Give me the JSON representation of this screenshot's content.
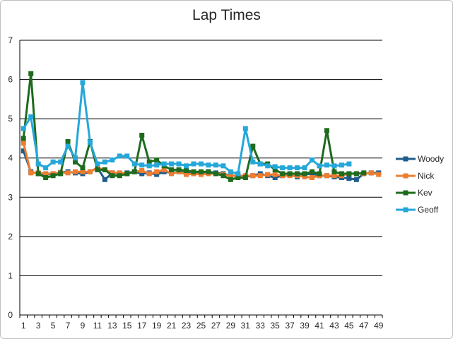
{
  "chart_data": {
    "type": "line",
    "title": "Lap Times",
    "xlabel": "",
    "ylabel": "",
    "ylim": [
      0,
      7
    ],
    "yticks": [
      0,
      1,
      2,
      3,
      4,
      5,
      6,
      7
    ],
    "xticks": [
      1,
      3,
      5,
      7,
      9,
      11,
      13,
      15,
      17,
      19,
      21,
      23,
      25,
      27,
      29,
      31,
      33,
      35,
      37,
      39,
      41,
      43,
      45,
      47,
      49
    ],
    "xlim": [
      1,
      49
    ],
    "grid": true,
    "legend_position": "right",
    "series": [
      {
        "name": "Woody",
        "color": "#1f5c8b",
        "values": [
          4.18,
          3.65,
          3.6,
          3.58,
          3.6,
          3.63,
          3.65,
          3.62,
          3.6,
          3.65,
          3.75,
          3.45,
          3.62,
          3.6,
          3.62,
          3.65,
          3.6,
          3.62,
          3.58,
          3.65,
          3.62,
          3.65,
          3.62,
          3.6,
          3.62,
          3.65,
          3.62,
          3.6,
          3.55,
          3.55,
          3.52,
          3.55,
          3.6,
          3.55,
          3.5,
          3.55,
          3.58,
          3.52,
          3.58,
          3.6,
          3.55,
          3.55,
          3.52,
          3.5,
          3.48,
          3.45,
          3.6,
          3.62,
          3.62
        ]
      },
      {
        "name": "Nick",
        "color": "#ed7d31",
        "values": [
          4.38,
          3.62,
          3.62,
          3.6,
          3.6,
          3.62,
          3.62,
          3.65,
          3.65,
          3.65,
          3.75,
          3.7,
          3.62,
          3.62,
          3.6,
          3.65,
          3.68,
          3.6,
          3.65,
          3.7,
          3.6,
          3.65,
          3.58,
          3.6,
          3.58,
          3.6,
          3.6,
          3.58,
          3.55,
          3.55,
          3.55,
          3.55,
          3.55,
          3.58,
          3.58,
          3.55,
          3.55,
          3.55,
          3.52,
          3.5,
          3.55,
          3.55,
          3.55,
          3.55,
          3.6,
          3.6,
          3.6,
          3.62,
          3.58
        ]
      },
      {
        "name": "Kev",
        "color": "#1e6b1e",
        "values": [
          4.5,
          6.15,
          3.6,
          3.5,
          3.55,
          3.6,
          4.42,
          3.9,
          3.75,
          4.42,
          3.7,
          3.7,
          3.55,
          3.55,
          3.6,
          3.65,
          4.58,
          3.9,
          3.95,
          3.8,
          3.7,
          3.7,
          3.68,
          3.65,
          3.65,
          3.65,
          3.6,
          3.55,
          3.45,
          3.5,
          3.5,
          4.3,
          3.85,
          3.85,
          3.7,
          3.6,
          3.6,
          3.6,
          3.6,
          3.65,
          3.6,
          4.7,
          3.65,
          3.6,
          3.6,
          3.6,
          3.62,
          null,
          null
        ]
      },
      {
        "name": "Geoff",
        "color": "#25a7da",
        "values": [
          4.75,
          5.05,
          3.85,
          3.75,
          3.9,
          3.9,
          4.3,
          4.0,
          5.92,
          4.4,
          3.85,
          3.9,
          3.95,
          4.05,
          4.05,
          3.85,
          3.82,
          3.8,
          3.82,
          3.85,
          3.85,
          3.85,
          3.8,
          3.85,
          3.85,
          3.82,
          3.82,
          3.8,
          3.65,
          3.6,
          4.75,
          3.9,
          3.85,
          3.8,
          3.78,
          3.75,
          3.75,
          3.75,
          3.75,
          3.95,
          3.8,
          3.82,
          3.8,
          3.82,
          3.85,
          null,
          null,
          null,
          null
        ]
      }
    ]
  }
}
